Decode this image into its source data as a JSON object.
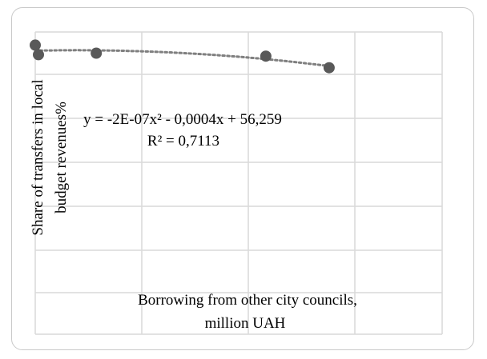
{
  "chart_data": {
    "type": "scatter",
    "title": "",
    "xlabel": "Borrowing from other city councils, million UAH",
    "xlabel_lines": [
      "Borrowing from other city councils,",
      "million UAH"
    ],
    "ylabel": "Share of transfers in local budget revenues%",
    "ylabel_lines": [
      "Share of transfers in local",
      "budget revenues%"
    ],
    "grid": true,
    "legend": "none",
    "x_tick_labels_shown": false,
    "y_tick_labels_shown": false,
    "series": [
      {
        "points": [
          {
            "x": 0,
            "y": 0.74
          },
          {
            "x": 7,
            "y": 0.55
          },
          {
            "x": 135,
            "y": 0.58
          },
          {
            "x": 510,
            "y": 0.52
          },
          {
            "x": 650,
            "y": 0.29
          }
        ],
        "marker_color": "#595959"
      }
    ],
    "trendline": {
      "type": "polynomial",
      "order": 2,
      "style": "dotted",
      "color": "#7f7f7f",
      "equation": "y = -2E-07x² - 0,0004x + 56,259",
      "r_squared": "R² = 0,7113"
    },
    "xlim": [
      0,
      900
    ],
    "ylim": [
      -5.0,
      1.0
    ]
  }
}
